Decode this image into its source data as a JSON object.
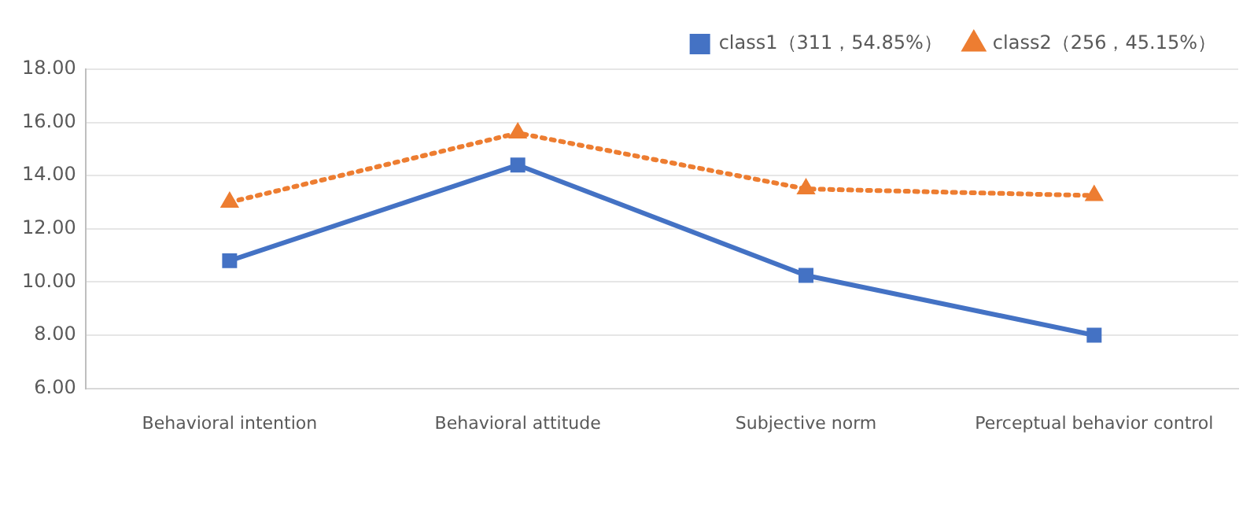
{
  "chart_data": {
    "type": "line",
    "categories": [
      "Behavioral intention",
      "Behavioral attitude",
      "Subjective norm",
      "Perceptual behavior control"
    ],
    "series": [
      {
        "name": "class1（311，54.85%）",
        "color": "#4472c4",
        "values": [
          10.8,
          14.4,
          10.25,
          8.0
        ],
        "marker": "square",
        "line_style": "solid"
      },
      {
        "name": "class2（256，45.15%）",
        "color": "#ed7d31",
        "values": [
          13.0,
          15.6,
          13.5,
          13.25
        ],
        "marker": "triangle",
        "line_style": "dotted"
      }
    ],
    "ylim": [
      6,
      18
    ],
    "yticks": [
      {
        "value": 6,
        "label": "6.00"
      },
      {
        "value": 8,
        "label": "8.00"
      },
      {
        "value": 10,
        "label": "10.00"
      },
      {
        "value": 12,
        "label": "12.00"
      },
      {
        "value": 14,
        "label": "14.00"
      },
      {
        "value": 16,
        "label": "16.00"
      },
      {
        "value": 18,
        "label": "18.00"
      }
    ],
    "grid": "y",
    "legend": "top right"
  }
}
